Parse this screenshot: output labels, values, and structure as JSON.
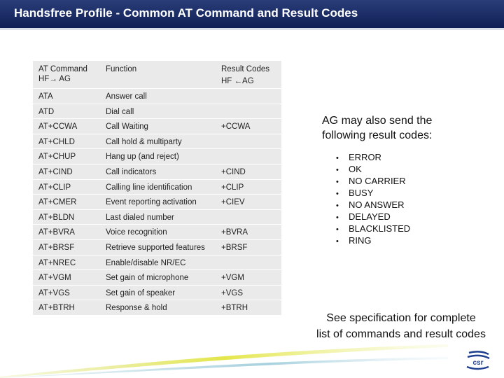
{
  "header": {
    "title": "Handsfree Profile - Common AT Command and Result Codes"
  },
  "table": {
    "headers": {
      "command": [
        "AT Command",
        "HF→ AG"
      ],
      "function": "Function",
      "result": [
        "Result Codes",
        "HF ←AG"
      ]
    },
    "rows": [
      {
        "command": "ATA",
        "function": "Answer call",
        "result": ""
      },
      {
        "command": "ATD",
        "function": "Dial call",
        "result": ""
      },
      {
        "command": "AT+CCWA",
        "function": "Call Waiting",
        "result": "+CCWA"
      },
      {
        "command": "AT+CHLD",
        "function": "Call hold & multiparty",
        "result": ""
      },
      {
        "command": "AT+CHUP",
        "function": "Hang up (and reject)",
        "result": ""
      },
      {
        "command": "AT+CIND",
        "function": "Call indicators",
        "result": "+CIND"
      },
      {
        "command": "AT+CLIP",
        "function": "Calling line identification",
        "result": "+CLIP"
      },
      {
        "command": "AT+CMER",
        "function": "Event reporting activation",
        "result": "+CIEV"
      },
      {
        "command": "AT+BLDN",
        "function": "Last dialed number",
        "result": ""
      },
      {
        "command": "AT+BVRA",
        "function": "Voice recognition",
        "result": "+BVRA"
      },
      {
        "command": "AT+BRSF",
        "function": "Retrieve supported features",
        "result": "+BRSF"
      },
      {
        "command": "AT+NREC",
        "function": "Enable/disable NR/EC",
        "result": ""
      },
      {
        "command": "AT+VGM",
        "function": "Set gain of microphone",
        "result": "+VGM"
      },
      {
        "command": "AT+VGS",
        "function": "Set gain of speaker",
        "result": "+VGS"
      },
      {
        "command": "AT+BTRH",
        "function": "Response & hold",
        "result": "+BTRH"
      }
    ]
  },
  "side": {
    "title": [
      "AG may also send the",
      "following result codes:"
    ],
    "codes": [
      "ERROR",
      "OK",
      "NO CARRIER",
      "BUSY",
      "NO ANSWER",
      "DELAYED",
      "BLACKLISTED",
      "RING"
    ]
  },
  "spec_note": [
    "See specification for complete",
    "list of commands and result codes"
  ],
  "icons": {
    "bullet": "bullet-icon",
    "logo": "csr-logo-icon"
  },
  "colors": {
    "header_bg": "#1a2b66",
    "table_bg": "#eaeaea",
    "logo_blue": "#1f3f8f"
  }
}
